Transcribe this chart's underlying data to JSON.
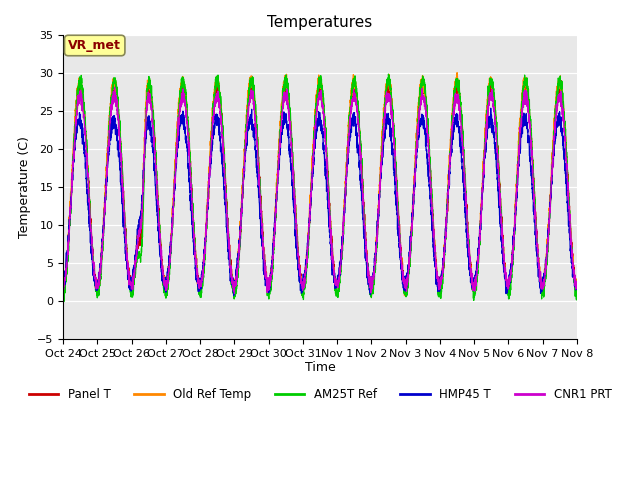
{
  "title": "Temperatures",
  "ylabel": "Temperature (C)",
  "xlabel": "Time",
  "annotation_text": "VR_met",
  "ylim": [
    -5,
    35
  ],
  "plot_bg_color": "#e8e8e8",
  "xtick_labels": [
    "Oct 24",
    "Oct 25",
    "Oct 26",
    "Oct 27",
    "Oct 28",
    "Oct 29",
    "Oct 30",
    "Oct 31",
    "Nov 1",
    "Nov 2",
    "Nov 3",
    "Nov 4",
    "Nov 5",
    "Nov 6",
    "Nov 7",
    "Nov 8"
  ],
  "series_names": [
    "Panel T",
    "Old Ref Temp",
    "AM25T Ref",
    "HMP45 T",
    "CNR1 PRT"
  ],
  "series_colors": [
    "#cc0000",
    "#ff8800",
    "#00cc00",
    "#0000cc",
    "#cc00cc"
  ],
  "num_days": 15,
  "samples_per_day": 288
}
